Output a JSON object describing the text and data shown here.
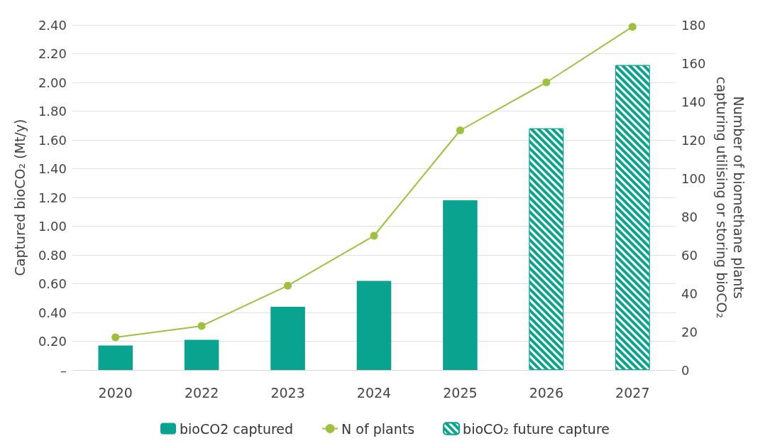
{
  "chart_data": {
    "type": "bar",
    "categories": [
      "2020",
      "2022",
      "2023",
      "2024",
      "2025",
      "2026",
      "2027"
    ],
    "ylabel": "Captured bioCO₂ (Mt/y)",
    "y2label": "Number of biomethane plants capturing utilising or storing bioCO₂",
    "stacked": true,
    "series": [
      {
        "name": "bioCO2 captured",
        "color": "#0aa38f",
        "values": [
          0.17,
          0.21,
          0.44,
          0.62,
          1.18,
          null,
          null
        ]
      },
      {
        "name": "N of plants",
        "type": "line",
        "axis": "y2",
        "color": "#9dc13c",
        "marker": "circle",
        "line_style": "solid",
        "values": [
          17,
          23,
          44,
          70,
          125,
          150,
          179
        ]
      },
      {
        "name": "bioCO₂ future capture",
        "color": "#0aa38f",
        "values": [
          null,
          null,
          null,
          null,
          null,
          1.68,
          2.12
        ]
      }
    ],
    "ylim": [
      0,
      2.4
    ],
    "yticks": [
      {
        "value": 0,
        "label": "–"
      },
      {
        "value": 0.2,
        "label": "0.20"
      },
      {
        "value": 0.4,
        "label": "0.40"
      },
      {
        "value": 0.6,
        "label": "0.60"
      },
      {
        "value": 0.8,
        "label": "0.80"
      },
      {
        "value": 1.0,
        "label": "1.00"
      },
      {
        "value": 1.2,
        "label": "1.20"
      },
      {
        "value": 1.4,
        "label": "1.40"
      },
      {
        "value": 1.6,
        "label": "1.60"
      },
      {
        "value": 1.8,
        "label": "1.80"
      },
      {
        "value": 2.0,
        "label": "2.00"
      },
      {
        "value": 2.2,
        "label": "2.20"
      },
      {
        "value": 2.4,
        "label": "2.40"
      }
    ],
    "y2lim": [
      0,
      180
    ],
    "y2ticks": [
      0,
      20,
      40,
      60,
      80,
      100,
      120,
      140,
      160,
      180
    ],
    "grid": "y",
    "legend": "bottom"
  }
}
